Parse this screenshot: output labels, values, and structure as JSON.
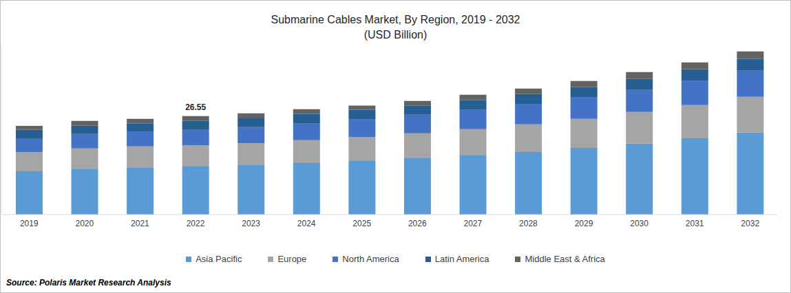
{
  "chart_data": {
    "type": "bar",
    "title": "Submarine Cables Market, By Region, 2019 - 2032",
    "subtitle": "(USD Billion)",
    "source": "Source: Polaris Market Research Analysis",
    "stacked": true,
    "tick_labels": "x",
    "grid": false,
    "legend": "bottom",
    "categories": [
      "2019",
      "2020",
      "2021",
      "2022",
      "2023",
      "2024",
      "2025",
      "2026",
      "2027",
      "2028",
      "2029",
      "2030",
      "2031",
      "2032"
    ],
    "series": [
      {
        "name": "Asia Pacific",
        "color": "#5b9bd5",
        "values": [
          11.7,
          12.26,
          12.63,
          13.0,
          13.37,
          13.93,
          14.48,
          15.23,
          15.97,
          16.9,
          18.01,
          19.13,
          20.61,
          22.1
        ]
      },
      {
        "name": "Europe",
        "color": "#a5a5a5",
        "values": [
          5.2,
          5.57,
          5.76,
          5.75,
          5.94,
          6.13,
          6.5,
          6.69,
          7.06,
          7.43,
          7.8,
          8.54,
          8.91,
          9.66
        ]
      },
      {
        "name": "North America",
        "color": "#4472c4",
        "values": [
          3.71,
          3.9,
          3.9,
          4.09,
          4.27,
          4.46,
          4.64,
          5.01,
          5.2,
          5.39,
          5.76,
          5.94,
          6.5,
          7.06
        ]
      },
      {
        "name": "Latin America",
        "color": "#255e91",
        "values": [
          2.23,
          2.23,
          2.23,
          2.41,
          2.41,
          2.6,
          2.6,
          2.41,
          2.6,
          2.79,
          2.79,
          2.97,
          3.16,
          3.16
        ]
      },
      {
        "name": "Middle East & Africa",
        "color": "#636363",
        "values": [
          1.11,
          1.3,
          1.3,
          1.3,
          1.3,
          1.3,
          1.2,
          1.3,
          1.49,
          1.49,
          1.67,
          1.86,
          1.86,
          2.04
        ]
      }
    ],
    "annotations": [
      {
        "category": "2022",
        "label": "26.55"
      }
    ],
    "ylim": [
      0,
      46
    ],
    "yticks": []
  }
}
